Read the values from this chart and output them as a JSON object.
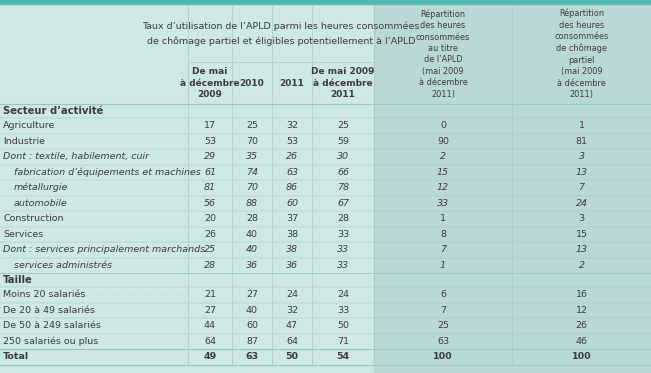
{
  "title_line1": "Taux d’utilisation de l’APLD parmi les heures consommées",
  "title_line2": "de chômage partiel et éligibles potentiellement à l’APLD",
  "col_header_sub": [
    "De mai\nà décembre\n2009",
    "2010",
    "2011",
    "De mai 2009\nà décembre\n2011"
  ],
  "col_header_right": [
    "Répartition\ndes heures\nconsommées\nau titre\nde l’APLD\n(mai 2009\nà décembre\n2011)",
    "Répartition\ndes heures\nconsommées\nde chômage\npartiel\n(mai 2009\nà décembre\n2011)"
  ],
  "rows": [
    {
      "type": "section",
      "label": "Secteur d’activité",
      "values": []
    },
    {
      "type": "data",
      "label": "Agriculture",
      "italic": false,
      "indent": false,
      "values": [
        "17",
        "25",
        "32",
        "25",
        "0",
        "1"
      ]
    },
    {
      "type": "data",
      "label": "Industrie",
      "italic": false,
      "indent": false,
      "values": [
        "53",
        "70",
        "53",
        "59",
        "90",
        "81"
      ]
    },
    {
      "type": "data",
      "label": "Dont : textile, habilement, cuir",
      "italic": true,
      "indent": false,
      "values": [
        "29",
        "35",
        "26",
        "30",
        "2",
        "3"
      ]
    },
    {
      "type": "data",
      "label": "fabrication d’équipements et machines",
      "italic": true,
      "indent": true,
      "values": [
        "61",
        "74",
        "63",
        "66",
        "15",
        "13"
      ]
    },
    {
      "type": "data",
      "label": "métallurgie",
      "italic": true,
      "indent": true,
      "values": [
        "81",
        "70",
        "86",
        "78",
        "12",
        "7"
      ]
    },
    {
      "type": "data",
      "label": "automobile",
      "italic": true,
      "indent": true,
      "values": [
        "56",
        "88",
        "60",
        "67",
        "33",
        "24"
      ]
    },
    {
      "type": "data",
      "label": "Construction",
      "italic": false,
      "indent": false,
      "values": [
        "20",
        "28",
        "37",
        "28",
        "1",
        "3"
      ]
    },
    {
      "type": "data",
      "label": "Services",
      "italic": false,
      "indent": false,
      "values": [
        "26",
        "40",
        "38",
        "33",
        "8",
        "15"
      ]
    },
    {
      "type": "data",
      "label": "Dont : services principalement marchands",
      "italic": true,
      "indent": false,
      "values": [
        "25",
        "40",
        "38",
        "33",
        "7",
        "13"
      ]
    },
    {
      "type": "data",
      "label": "services administrés",
      "italic": true,
      "indent": true,
      "values": [
        "28",
        "36",
        "36",
        "33",
        "1",
        "2"
      ]
    },
    {
      "type": "section",
      "label": "Taille",
      "values": []
    },
    {
      "type": "data",
      "label": "Moins 20 salariés",
      "italic": false,
      "indent": false,
      "values": [
        "21",
        "27",
        "24",
        "24",
        "6",
        "16"
      ]
    },
    {
      "type": "data",
      "label": "De 20 à 49 salariés",
      "italic": false,
      "indent": false,
      "values": [
        "27",
        "40",
        "32",
        "33",
        "7",
        "12"
      ]
    },
    {
      "type": "data",
      "label": "De 50 à 249 salariés",
      "italic": false,
      "indent": false,
      "values": [
        "44",
        "60",
        "47",
        "50",
        "25",
        "26"
      ]
    },
    {
      "type": "data",
      "label": "250 salariés ou plus",
      "italic": false,
      "indent": false,
      "values": [
        "64",
        "87",
        "64",
        "71",
        "63",
        "46"
      ]
    },
    {
      "type": "total",
      "label": "Total",
      "italic": false,
      "indent": false,
      "values": [
        "49",
        "63",
        "50",
        "54",
        "100",
        "100"
      ]
    }
  ],
  "bg_main": "#cde8e5",
  "bg_darker": "#b8d9d6",
  "teal_bar": "#4db8b0",
  "text_color": "#3c3c3c",
  "border_color": "#a0c4c0",
  "font_size": 6.8,
  "header_font_size": 6.8
}
